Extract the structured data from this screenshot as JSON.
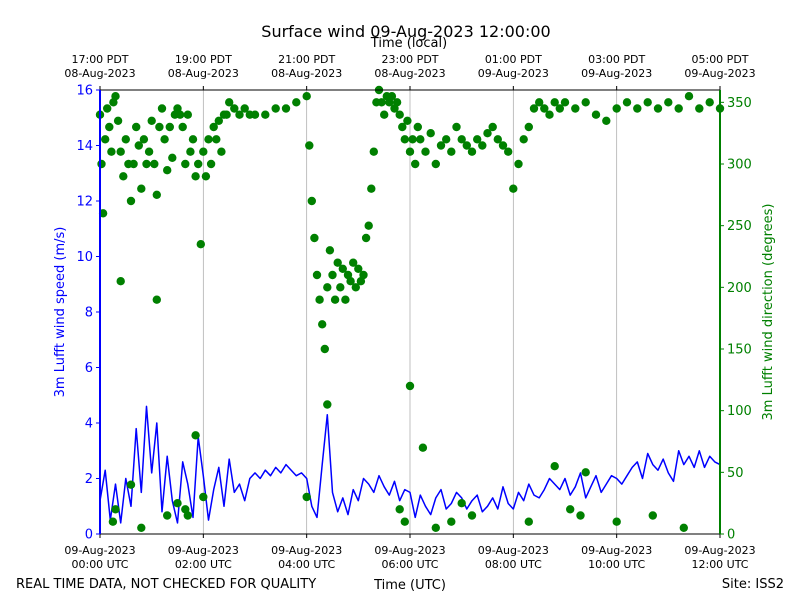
{
  "chart_data": {
    "type": "line",
    "title": "Surface wind 09-Aug-2023 12:00:00",
    "top_axis_label": "Time (local)",
    "xlabel": "Time (UTC)",
    "ylabel_left": "3m Lufft wind speed (m/s)",
    "ylabel_right": "3m Lufft wind direction (degrees)",
    "xlim_hours_utc": [
      0,
      12
    ],
    "ylim_left": [
      0,
      16
    ],
    "ylim_right": [
      0,
      360
    ],
    "grid": "vertical lines at each bottom tick",
    "bottom_ticks": [
      {
        "line1": "09-Aug-2023",
        "line2": "00:00 UTC"
      },
      {
        "line1": "09-Aug-2023",
        "line2": "02:00 UTC"
      },
      {
        "line1": "09-Aug-2023",
        "line2": "04:00 UTC"
      },
      {
        "line1": "09-Aug-2023",
        "line2": "06:00 UTC"
      },
      {
        "line1": "09-Aug-2023",
        "line2": "08:00 UTC"
      },
      {
        "line1": "09-Aug-2023",
        "line2": "10:00 UTC"
      },
      {
        "line1": "09-Aug-2023",
        "line2": "12:00 UTC"
      }
    ],
    "top_ticks": [
      {
        "line1": "17:00 PDT",
        "line2": "08-Aug-2023"
      },
      {
        "line1": "19:00 PDT",
        "line2": "08-Aug-2023"
      },
      {
        "line1": "21:00 PDT",
        "line2": "08-Aug-2023"
      },
      {
        "line1": "23:00 PDT",
        "line2": "08-Aug-2023"
      },
      {
        "line1": "01:00 PDT",
        "line2": "09-Aug-2023"
      },
      {
        "line1": "03:00 PDT",
        "line2": "09-Aug-2023"
      },
      {
        "line1": "05:00 PDT",
        "line2": "09-Aug-2023"
      }
    ],
    "left_ticks": [
      "0",
      "2",
      "4",
      "6",
      "8",
      "10",
      "12",
      "14",
      "16"
    ],
    "right_ticks": [
      "0",
      "50",
      "100",
      "150",
      "200",
      "250",
      "300",
      "350"
    ],
    "speed_color": "#0000ff",
    "direction_color": "#008000",
    "series": [
      {
        "name": "3m Lufft wind speed (m/s)",
        "axis": "left",
        "style": "line",
        "x_hours_utc": [
          0.0,
          0.1,
          0.2,
          0.3,
          0.4,
          0.5,
          0.6,
          0.7,
          0.8,
          0.9,
          1.0,
          1.1,
          1.2,
          1.3,
          1.4,
          1.5,
          1.6,
          1.7,
          1.8,
          1.9,
          2.0,
          2.1,
          2.2,
          2.3,
          2.4,
          2.5,
          2.6,
          2.7,
          2.8,
          2.9,
          3.0,
          3.1,
          3.2,
          3.3,
          3.4,
          3.5,
          3.6,
          3.7,
          3.8,
          3.9,
          4.0,
          4.1,
          4.2,
          4.3,
          4.4,
          4.5,
          4.6,
          4.7,
          4.8,
          4.9,
          5.0,
          5.1,
          5.2,
          5.3,
          5.4,
          5.5,
          5.6,
          5.7,
          5.8,
          5.9,
          6.0,
          6.1,
          6.2,
          6.3,
          6.4,
          6.5,
          6.6,
          6.7,
          6.8,
          6.9,
          7.0,
          7.1,
          7.2,
          7.3,
          7.4,
          7.5,
          7.6,
          7.7,
          7.8,
          7.9,
          8.0,
          8.1,
          8.2,
          8.3,
          8.4,
          8.5,
          8.6,
          8.7,
          8.8,
          8.9,
          9.0,
          9.1,
          9.2,
          9.3,
          9.4,
          9.5,
          9.6,
          9.7,
          9.8,
          9.9,
          10.0,
          10.1,
          10.2,
          10.3,
          10.4,
          10.5,
          10.6,
          10.7,
          10.8,
          10.9,
          11.0,
          11.1,
          11.2,
          11.3,
          11.4,
          11.5,
          11.6,
          11.7,
          11.8,
          11.9,
          12.0
        ],
        "values": [
          1.2,
          2.3,
          0.5,
          1.8,
          0.4,
          2.0,
          1.0,
          3.8,
          1.5,
          4.6,
          2.2,
          4.0,
          0.8,
          2.8,
          1.2,
          0.4,
          2.6,
          1.8,
          0.6,
          3.5,
          2.1,
          0.5,
          1.6,
          2.4,
          1.0,
          2.7,
          1.5,
          1.8,
          1.2,
          2.0,
          2.2,
          2.0,
          2.3,
          2.1,
          2.4,
          2.2,
          2.5,
          2.3,
          2.1,
          2.2,
          2.0,
          1.0,
          0.6,
          2.5,
          4.3,
          1.5,
          0.8,
          1.3,
          0.7,
          1.6,
          1.2,
          2.0,
          1.8,
          1.5,
          2.1,
          1.7,
          1.4,
          1.9,
          1.2,
          1.6,
          1.5,
          0.6,
          1.4,
          1.0,
          0.7,
          1.3,
          1.6,
          0.9,
          1.1,
          1.5,
          1.3,
          0.9,
          1.2,
          1.4,
          0.8,
          1.0,
          1.3,
          0.9,
          1.7,
          1.1,
          0.9,
          1.5,
          1.2,
          1.8,
          1.4,
          1.3,
          1.6,
          2.0,
          1.8,
          1.6,
          2.0,
          1.4,
          1.7,
          2.2,
          1.3,
          1.7,
          2.1,
          1.5,
          1.8,
          2.1,
          2.0,
          1.8,
          2.1,
          2.4,
          2.6,
          2.0,
          2.9,
          2.5,
          2.3,
          2.7,
          2.2,
          1.9,
          3.0,
          2.5,
          2.8,
          2.4,
          3.0,
          2.4,
          2.8,
          2.6,
          2.5
        ]
      },
      {
        "name": "3m Lufft wind direction (degrees)",
        "axis": "right",
        "style": "markers",
        "x_hours_utc": [
          0.0,
          0.03,
          0.06,
          0.1,
          0.14,
          0.18,
          0.22,
          0.26,
          0.3,
          0.35,
          0.4,
          0.45,
          0.5,
          0.55,
          0.6,
          0.65,
          0.7,
          0.75,
          0.8,
          0.85,
          0.9,
          0.95,
          1.0,
          1.05,
          1.1,
          1.15,
          1.2,
          1.25,
          1.3,
          1.35,
          1.4,
          1.45,
          1.5,
          1.55,
          1.6,
          1.65,
          1.7,
          1.75,
          1.8,
          1.85,
          1.9,
          1.95,
          2.0,
          2.05,
          2.1,
          2.15,
          2.2,
          2.25,
          2.3,
          2.35,
          2.4,
          2.45,
          2.5,
          2.6,
          2.7,
          2.8,
          2.9,
          3.0,
          3.2,
          3.4,
          3.6,
          3.8,
          4.0,
          4.05,
          4.1,
          4.15,
          4.2,
          4.25,
          4.3,
          4.35,
          4.4,
          4.45,
          4.5,
          4.55,
          4.6,
          4.65,
          4.7,
          4.75,
          4.8,
          4.85,
          4.9,
          4.95,
          5.0,
          5.05,
          5.1,
          5.15,
          5.2,
          5.25,
          5.3,
          5.35,
          5.4,
          5.45,
          5.5,
          5.55,
          5.6,
          5.65,
          5.7,
          5.75,
          5.8,
          5.85,
          5.9,
          5.95,
          6.0,
          6.05,
          6.1,
          6.15,
          6.2,
          6.3,
          6.4,
          6.5,
          6.6,
          6.7,
          6.8,
          6.9,
          7.0,
          7.1,
          7.2,
          7.3,
          7.4,
          7.5,
          7.6,
          7.7,
          7.8,
          7.9,
          8.0,
          8.1,
          8.2,
          8.3,
          8.4,
          8.5,
          8.6,
          8.7,
          8.8,
          8.9,
          9.0,
          9.2,
          9.4,
          9.6,
          9.8,
          10.0,
          10.2,
          10.4,
          10.6,
          10.8,
          11.0,
          11.2,
          11.4,
          11.6,
          11.8,
          12.0,
          0.25,
          0.8,
          1.3,
          1.65,
          0.4,
          1.1,
          4.0,
          4.4,
          5.8,
          5.9,
          6.0,
          6.25,
          6.5,
          6.8,
          7.0,
          7.2,
          8.3,
          8.8,
          9.1,
          9.3,
          9.4,
          10.0,
          10.7,
          11.3,
          0.3,
          0.6,
          1.5,
          1.7,
          1.85,
          2.0
        ],
        "values": [
          340,
          300,
          260,
          320,
          345,
          330,
          310,
          350,
          355,
          335,
          310,
          290,
          320,
          300,
          270,
          300,
          330,
          315,
          280,
          320,
          300,
          310,
          335,
          300,
          275,
          330,
          345,
          320,
          295,
          330,
          305,
          340,
          345,
          340,
          330,
          300,
          340,
          310,
          320,
          290,
          300,
          235,
          310,
          290,
          320,
          300,
          330,
          320,
          335,
          310,
          340,
          340,
          350,
          345,
          340,
          345,
          340,
          340,
          340,
          345,
          345,
          350,
          355,
          315,
          270,
          240,
          210,
          190,
          170,
          150,
          200,
          230,
          210,
          190,
          220,
          200,
          215,
          190,
          210,
          205,
          220,
          200,
          215,
          205,
          210,
          240,
          250,
          280,
          310,
          350,
          360,
          350,
          340,
          355,
          350,
          355,
          345,
          350,
          340,
          330,
          320,
          335,
          310,
          320,
          300,
          330,
          320,
          310,
          325,
          300,
          315,
          320,
          310,
          330,
          320,
          315,
          310,
          320,
          315,
          325,
          330,
          320,
          315,
          310,
          280,
          300,
          320,
          330,
          345,
          350,
          345,
          340,
          350,
          345,
          350,
          345,
          350,
          340,
          335,
          345,
          350,
          345,
          350,
          345,
          350,
          345,
          355,
          345,
          350,
          345,
          10,
          5,
          15,
          20,
          205,
          190,
          30,
          105,
          20,
          10,
          120,
          70,
          5,
          10,
          25,
          15,
          10,
          55,
          20,
          15,
          50,
          10,
          15,
          5,
          20,
          40,
          25,
          15,
          80,
          30
        ]
      }
    ]
  },
  "footer": {
    "left_note": "REAL TIME DATA, NOT CHECKED FOR QUALITY",
    "site": "Site: ISS2"
  }
}
